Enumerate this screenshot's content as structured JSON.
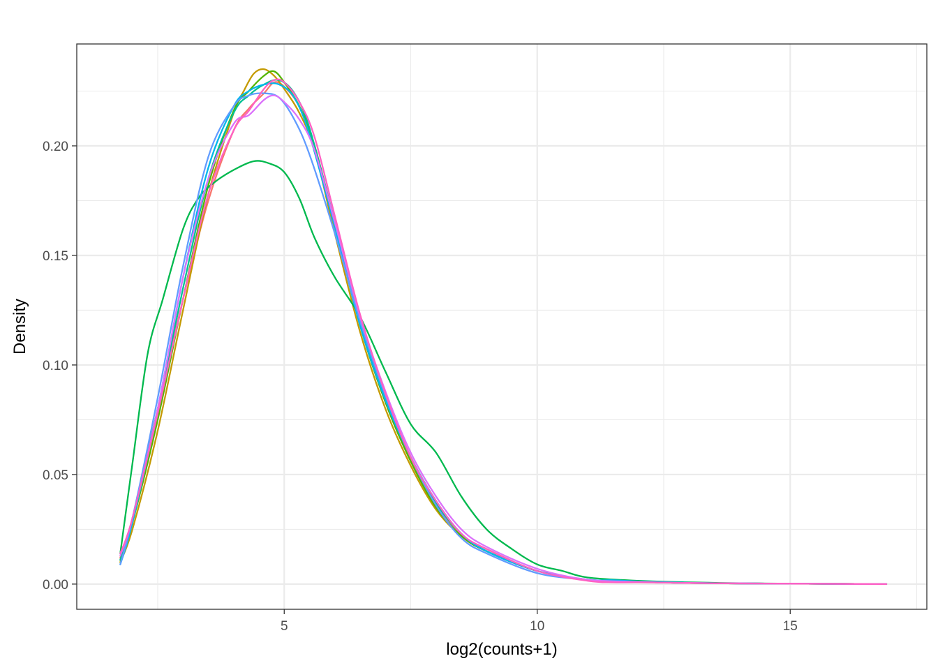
{
  "chart_data": {
    "type": "line",
    "title": "",
    "xlabel": "log2(counts+1)",
    "ylabel": "Density",
    "xlim": [
      0.9,
      17.7
    ],
    "ylim": [
      -0.0115,
      0.2465
    ],
    "x_ticks": [
      5,
      10,
      15
    ],
    "x_tick_labels": [
      "5",
      "10",
      "15"
    ],
    "y_ticks": [
      0.0,
      0.05,
      0.1,
      0.15,
      0.2
    ],
    "y_tick_labels": [
      "0.00",
      "0.05",
      "0.10",
      "0.15",
      "0.20"
    ],
    "grid": true,
    "legend": "none",
    "series": [
      {
        "color": "#F8766D",
        "x": [
          1.76,
          2,
          2.5,
          3,
          3.5,
          4,
          4.3,
          4.6,
          4.8,
          5,
          5.3,
          5.6,
          6,
          6.5,
          7,
          7.5,
          8,
          8.5,
          9,
          10,
          11,
          12,
          13,
          14,
          15,
          16,
          16.9
        ],
        "y": [
          0.012,
          0.03,
          0.08,
          0.13,
          0.175,
          0.207,
          0.217,
          0.224,
          0.229,
          0.227,
          0.218,
          0.2,
          0.165,
          0.12,
          0.084,
          0.057,
          0.036,
          0.022,
          0.015,
          0.006,
          0.002,
          0.001,
          0.0005,
          0.0003,
          0.0002,
          0.0001,
          0.0
        ]
      },
      {
        "color": "#C49A00",
        "x": [
          1.76,
          2,
          2.5,
          3,
          3.5,
          4,
          4.2,
          4.4,
          4.6,
          4.8,
          5,
          5.3,
          5.6,
          6,
          6.5,
          7,
          7.5,
          8,
          8.5,
          9,
          10,
          11,
          12,
          13,
          14,
          15,
          16,
          16.9
        ],
        "y": [
          0.01,
          0.025,
          0.07,
          0.125,
          0.178,
          0.215,
          0.225,
          0.233,
          0.235,
          0.232,
          0.226,
          0.215,
          0.198,
          0.16,
          0.115,
          0.08,
          0.054,
          0.034,
          0.022,
          0.016,
          0.006,
          0.002,
          0.001,
          0.0005,
          0.0003,
          0.0002,
          0.0001,
          0.0
        ]
      },
      {
        "color": "#53B400",
        "x": [
          1.76,
          2,
          2.5,
          3,
          3.5,
          4,
          4.3,
          4.6,
          4.8,
          5,
          5.3,
          5.6,
          6,
          6.5,
          7,
          7.5,
          8,
          8.5,
          9,
          10,
          11,
          12,
          13,
          14,
          15,
          16,
          16.9
        ],
        "y": [
          0.011,
          0.028,
          0.075,
          0.13,
          0.182,
          0.216,
          0.225,
          0.232,
          0.234,
          0.229,
          0.218,
          0.2,
          0.164,
          0.118,
          0.083,
          0.056,
          0.035,
          0.022,
          0.015,
          0.006,
          0.002,
          0.001,
          0.0005,
          0.0003,
          0.0002,
          0.0001,
          0.0
        ]
      },
      {
        "color": "#00B94E",
        "x": [
          1.76,
          2,
          2.3,
          2.6,
          3,
          3.3,
          3.6,
          4,
          4.4,
          4.7,
          5,
          5.3,
          5.6,
          6,
          6.5,
          7,
          7.5,
          8,
          8.5,
          9,
          9.5,
          10,
          10.5,
          11,
          12,
          13,
          14,
          15,
          16,
          16.9
        ],
        "y": [
          0.014,
          0.055,
          0.105,
          0.13,
          0.162,
          0.176,
          0.183,
          0.189,
          0.193,
          0.192,
          0.188,
          0.176,
          0.158,
          0.14,
          0.122,
          0.097,
          0.073,
          0.06,
          0.04,
          0.025,
          0.016,
          0.009,
          0.006,
          0.003,
          0.0015,
          0.0008,
          0.0004,
          0.0002,
          0.0001,
          0.0
        ]
      },
      {
        "color": "#00C094",
        "x": [
          1.76,
          2,
          2.5,
          3,
          3.5,
          4,
          4.3,
          4.6,
          4.9,
          5.2,
          5.5,
          6,
          6.5,
          7,
          7.5,
          8,
          8.5,
          9,
          10,
          11,
          12,
          13,
          14,
          15,
          16,
          16.9
        ],
        "y": [
          0.011,
          0.03,
          0.08,
          0.135,
          0.185,
          0.215,
          0.223,
          0.228,
          0.23,
          0.224,
          0.208,
          0.165,
          0.12,
          0.085,
          0.058,
          0.037,
          0.023,
          0.015,
          0.006,
          0.002,
          0.001,
          0.0005,
          0.0003,
          0.0002,
          0.0001,
          0.0
        ]
      },
      {
        "color": "#00B6EB",
        "x": [
          1.76,
          2,
          2.5,
          3,
          3.5,
          4,
          4.3,
          4.6,
          4.9,
          5.2,
          5.5,
          6,
          6.5,
          7,
          7.5,
          8,
          8.5,
          9,
          10,
          11,
          11.5,
          12,
          13,
          14,
          15,
          16,
          16.9
        ],
        "y": [
          0.009,
          0.028,
          0.08,
          0.14,
          0.19,
          0.218,
          0.225,
          0.228,
          0.228,
          0.222,
          0.205,
          0.163,
          0.118,
          0.084,
          0.058,
          0.038,
          0.023,
          0.015,
          0.006,
          0.002,
          0.0018,
          0.0012,
          0.0006,
          0.0003,
          0.0002,
          0.0001,
          0.0
        ]
      },
      {
        "color": "#619CFF",
        "x": [
          1.76,
          2,
          2.5,
          3,
          3.5,
          4,
          4.3,
          4.6,
          4.9,
          5.2,
          5.5,
          6,
          6.5,
          7,
          7.5,
          8,
          8.5,
          9,
          10,
          11,
          12,
          13,
          14,
          15,
          16,
          16.9
        ],
        "y": [
          0.009,
          0.03,
          0.085,
          0.145,
          0.195,
          0.218,
          0.223,
          0.224,
          0.222,
          0.212,
          0.196,
          0.16,
          0.12,
          0.086,
          0.058,
          0.036,
          0.021,
          0.014,
          0.005,
          0.002,
          0.001,
          0.0005,
          0.0003,
          0.0002,
          0.0001,
          0.0
        ]
      },
      {
        "color": "#DB72FB",
        "x": [
          1.76,
          2,
          2.5,
          3,
          3.5,
          4,
          4.3,
          4.6,
          4.8,
          5,
          5.3,
          5.6,
          6,
          6.5,
          7,
          7.5,
          8,
          8.5,
          9,
          10,
          11,
          12,
          13,
          14,
          15,
          16,
          16.9
        ],
        "y": [
          0.013,
          0.03,
          0.08,
          0.14,
          0.185,
          0.21,
          0.214,
          0.221,
          0.223,
          0.22,
          0.212,
          0.198,
          0.165,
          0.122,
          0.088,
          0.06,
          0.04,
          0.025,
          0.017,
          0.007,
          0.002,
          0.001,
          0.0005,
          0.0003,
          0.0002,
          0.0001,
          0.0
        ]
      },
      {
        "color": "#FF61C3",
        "x": [
          1.76,
          2,
          2.5,
          3,
          3.5,
          4,
          4.3,
          4.6,
          4.8,
          5,
          5.3,
          5.6,
          6,
          6.5,
          7,
          7.5,
          8,
          8.5,
          9,
          10,
          11,
          11.5,
          12,
          13,
          14,
          15,
          16,
          16.9
        ],
        "y": [
          0.014,
          0.03,
          0.078,
          0.13,
          0.178,
          0.207,
          0.216,
          0.226,
          0.23,
          0.229,
          0.22,
          0.204,
          0.168,
          0.123,
          0.087,
          0.058,
          0.038,
          0.023,
          0.016,
          0.006,
          0.0015,
          0.0008,
          0.0008,
          0.0005,
          0.0003,
          0.0002,
          0.0001,
          0.0
        ]
      }
    ]
  }
}
